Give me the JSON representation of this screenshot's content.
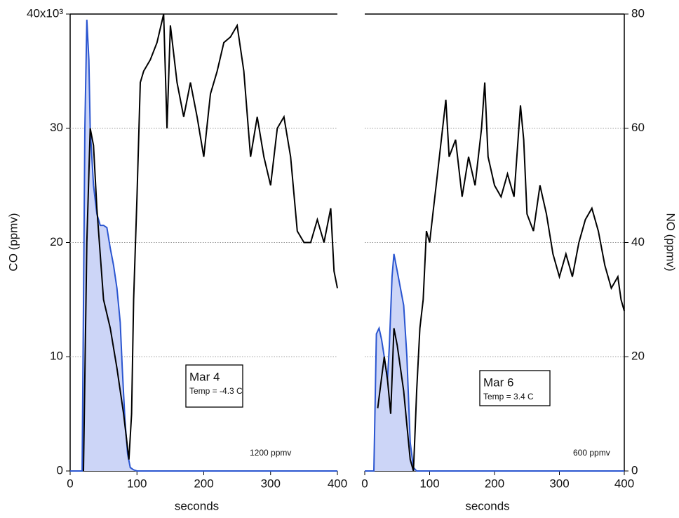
{
  "chart_data": {
    "type": "line",
    "ylabel": "CO (ppmv)",
    "y2label": "NO (ppmv)",
    "ylim": [
      0,
      40000
    ],
    "yticks": [
      0,
      {
        "value": 10000,
        "label": "10"
      },
      {
        "value": 20000,
        "label": "20"
      },
      {
        "value": 30000,
        "label": "30"
      },
      {
        "value": 40000,
        "label": "40x10³"
      }
    ],
    "y2lim": [
      0,
      80
    ],
    "y2ticks": [
      0,
      20,
      40,
      60,
      80
    ],
    "grid": true,
    "panels": [
      {
        "xlabel": "seconds",
        "xlim": [
          0,
          400
        ],
        "xticks": [
          0,
          100,
          200,
          300,
          400
        ],
        "label": "Mar 4",
        "temp": "Temp = -4.3 C",
        "note": "1200 ppmv",
        "series": [
          {
            "name": "CO",
            "color": "#2a55d0",
            "fill": "#ccd5f7",
            "axis": "y",
            "x": [
              0,
              18,
              22,
              25,
              28,
              30,
              35,
              40,
              45,
              50,
              55,
              60,
              65,
              70,
              75,
              78,
              82,
              86,
              90,
              95,
              100,
              400
            ],
            "values": [
              0,
              0,
              30000,
              39500,
              36000,
              30000,
              25000,
              22500,
              21500,
              21500,
              21300,
              19500,
              18000,
              16000,
              13000,
              9000,
              4500,
              1500,
              300,
              100,
              0,
              0
            ]
          },
          {
            "name": "NO",
            "color": "#000000",
            "axis": "y2",
            "x": [
              20,
              25,
              30,
              35,
              40,
              50,
              60,
              70,
              80,
              88,
              92,
              95,
              100,
              105,
              110,
              120,
              130,
              140,
              145,
              150,
              160,
              170,
              180,
              190,
              200,
              210,
              220,
              230,
              240,
              250,
              260,
              270,
              280,
              290,
              300,
              310,
              320,
              330,
              340,
              350,
              360,
              370,
              380,
              390,
              395,
              400
            ],
            "values": [
              0,
              40,
              60,
              57,
              46,
              30,
              25,
              18,
              10,
              2,
              10,
              30,
              48,
              68,
              70,
              72,
              75,
              80,
              60,
              78,
              68,
              62,
              68,
              62,
              55,
              66,
              70,
              75,
              76,
              78,
              70,
              55,
              62,
              55,
              50,
              60,
              62,
              55,
              42,
              40,
              40,
              44,
              40,
              46,
              35,
              32
            ]
          }
        ]
      },
      {
        "xlabel": "seconds",
        "xlim": [
          0,
          400
        ],
        "xticks": [
          0,
          100,
          200,
          300,
          400
        ],
        "label": "Mar 6",
        "temp": "Temp = 3.4 C",
        "note": "600 ppmv",
        "series": [
          {
            "name": "CO",
            "color": "#2a55d0",
            "fill": "#ccd5f7",
            "axis": "y",
            "x": [
              0,
              14,
              18,
              22,
              26,
              30,
              35,
              38,
              42,
              45,
              50,
              55,
              60,
              65,
              70,
              75,
              80,
              400
            ],
            "values": [
              0,
              0,
              12000,
              12500,
              11500,
              10000,
              8000,
              11000,
              17000,
              19000,
              17500,
              16000,
              14500,
              10000,
              2500,
              300,
              0,
              0
            ]
          },
          {
            "name": "NO",
            "color": "#000000",
            "axis": "y2",
            "x": [
              20,
              30,
              35,
              40,
              45,
              50,
              55,
              60,
              65,
              70,
              75,
              78,
              80,
              85,
              90,
              95,
              100,
              105,
              110,
              120,
              125,
              130,
              140,
              150,
              160,
              170,
              180,
              185,
              190,
              200,
              210,
              220,
              230,
              240,
              245,
              250,
              260,
              270,
              280,
              290,
              300,
              310,
              320,
              330,
              340,
              350,
              360,
              370,
              380,
              390,
              395,
              400
            ],
            "values": [
              11,
              20,
              16,
              10,
              25,
              22,
              18,
              14,
              8,
              2,
              0,
              8,
              14,
              25,
              30,
              42,
              40,
              45,
              50,
              60,
              65,
              55,
              58,
              48,
              55,
              50,
              60,
              68,
              55,
              50,
              48,
              52,
              48,
              64,
              58,
              45,
              42,
              50,
              45,
              38,
              34,
              38,
              34,
              40,
              44,
              46,
              42,
              36,
              32,
              34,
              30,
              28
            ]
          }
        ]
      }
    ]
  }
}
